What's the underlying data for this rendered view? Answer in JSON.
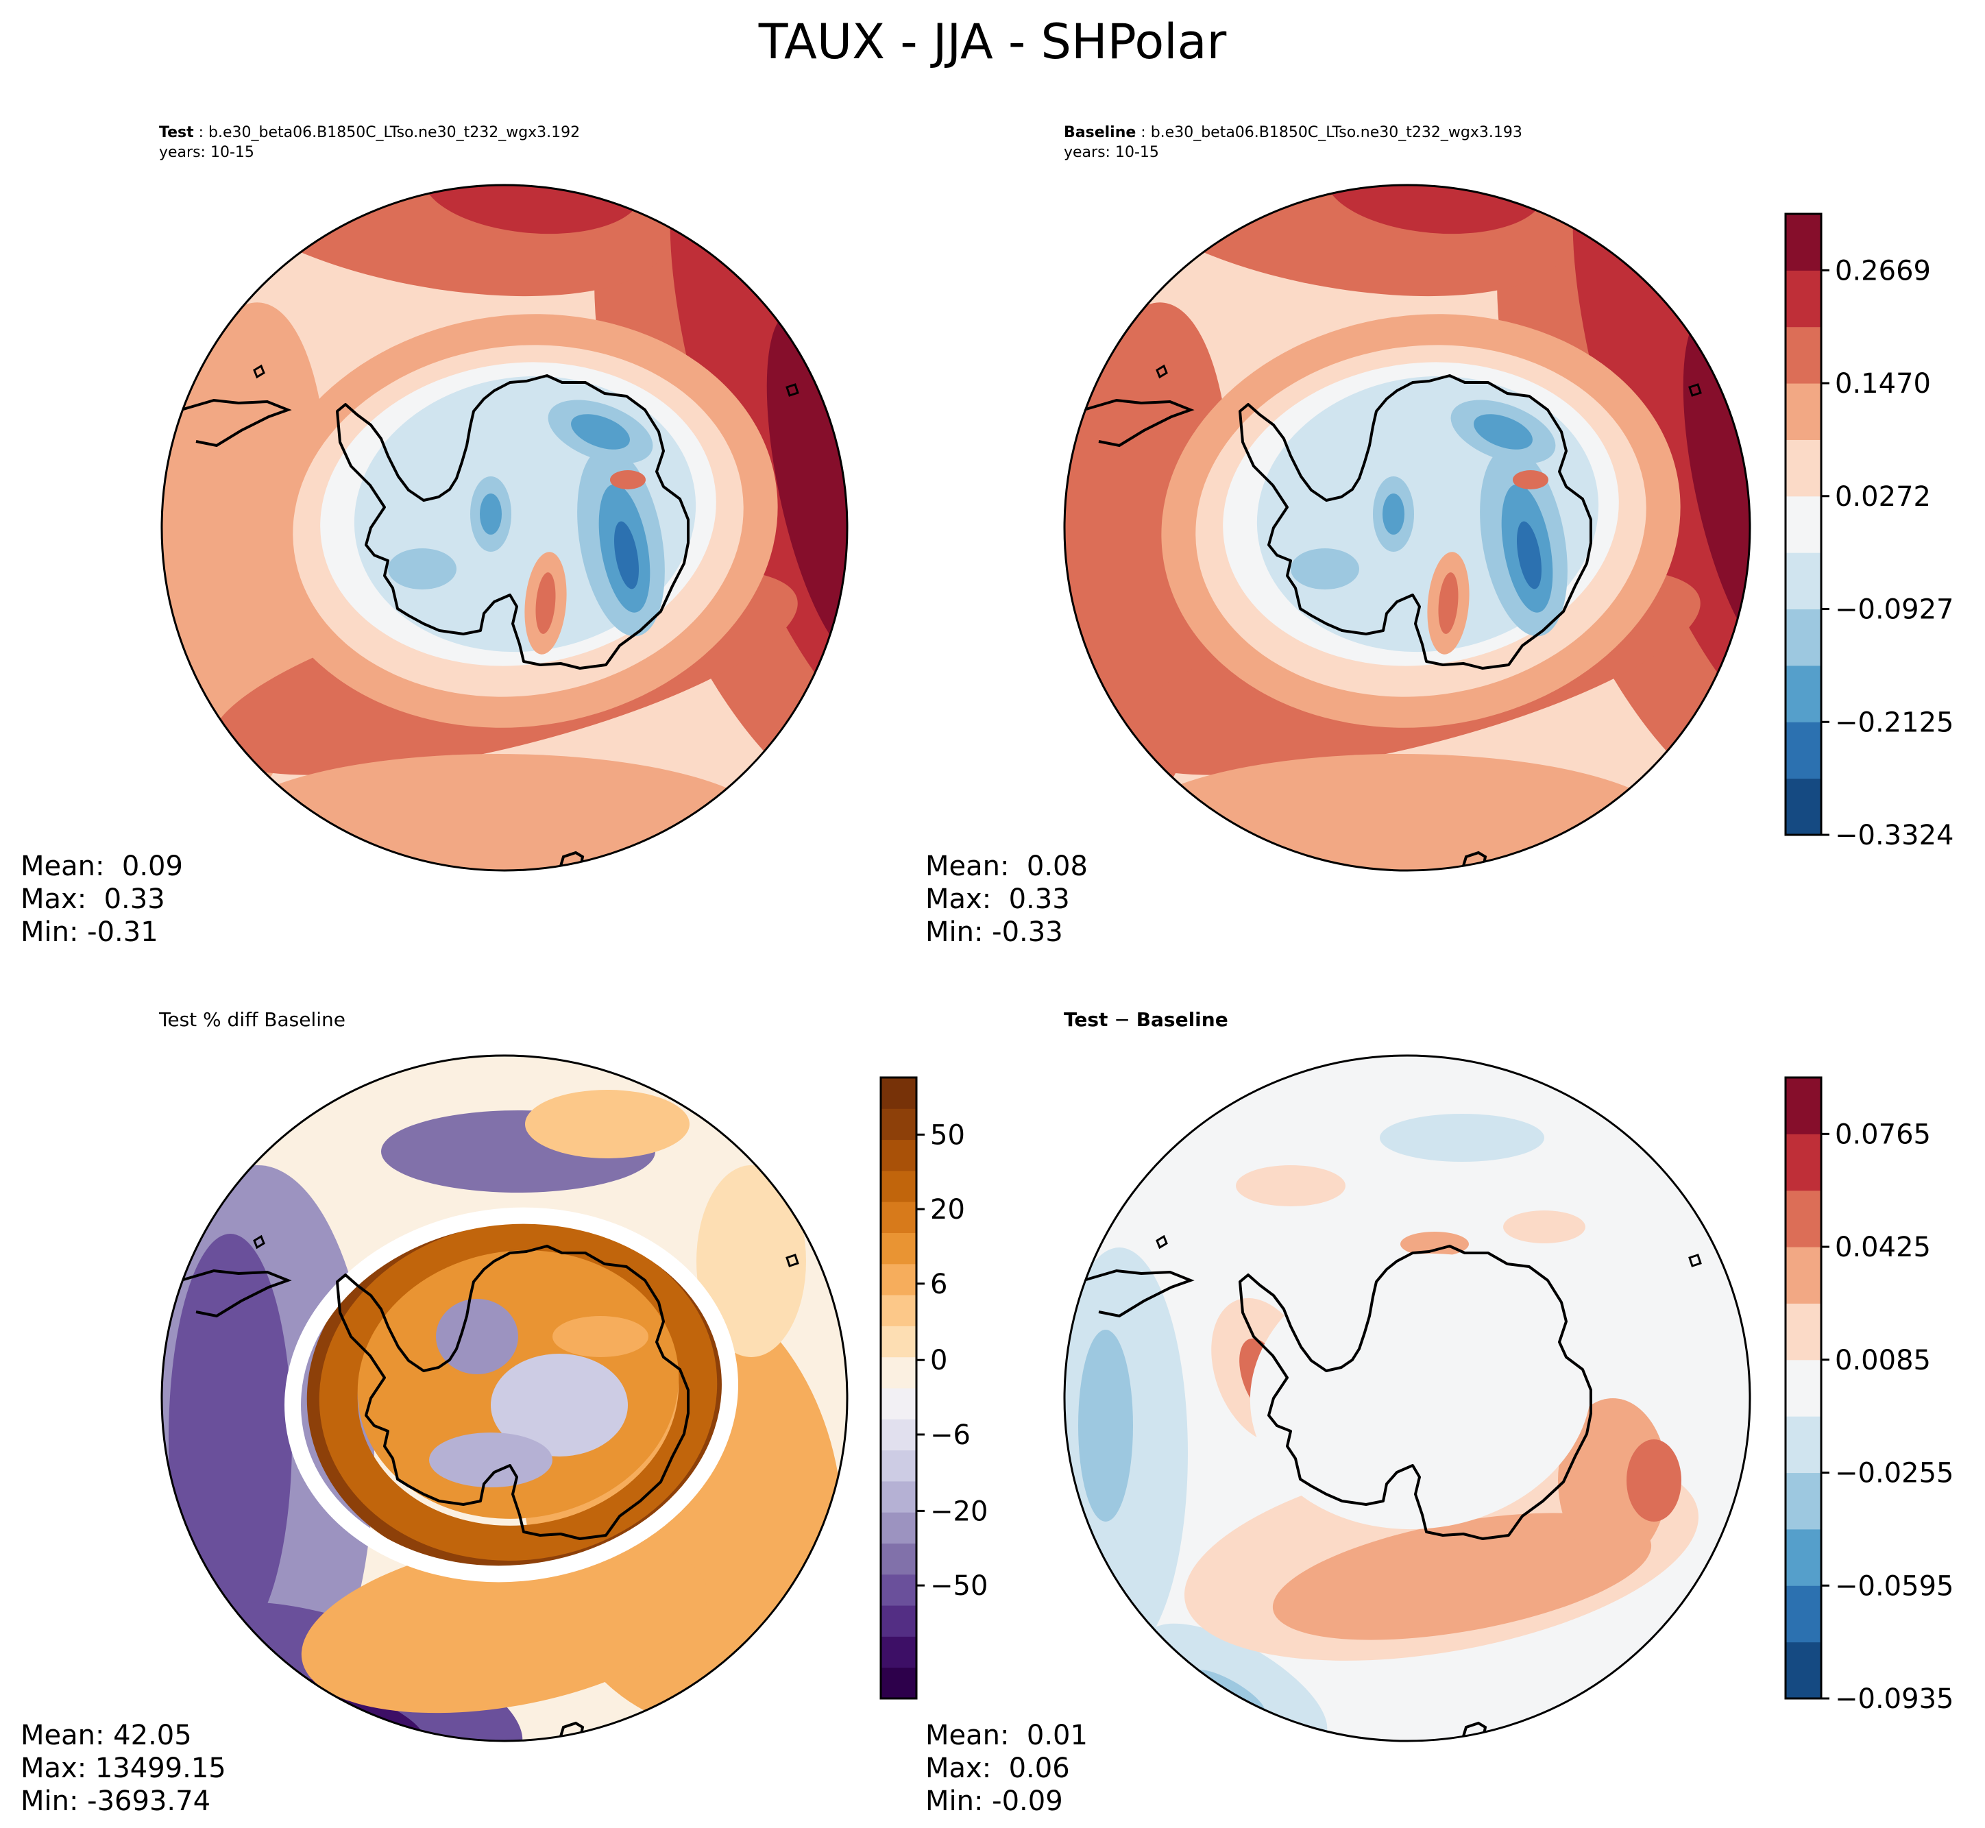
{
  "suptitle": "TAUX - JJA - SHPolar",
  "panels": {
    "test": {
      "label": "Test",
      "case": "b.e30_beta06.B1850C_LTso.ne30_t232_wgx3.192",
      "years": "years: 10-15",
      "mean": "Mean:  0.09",
      "max": "Max:  0.33",
      "min": "Min: -0.31"
    },
    "baseline": {
      "label": "Baseline",
      "case": "b.e30_beta06.B1850C_LTso.ne30_t232_wgx3.193",
      "years": "years: 10-15",
      "mean": "Mean:  0.08",
      "max": "Max:  0.33",
      "min": "Min: -0.33"
    },
    "pctdiff": {
      "title": "Test % diff Baseline",
      "mean": "Mean: 42.05",
      "max": "Max: 13499.15",
      "min": "Min: -3693.74"
    },
    "diff": {
      "title_bold": "Test",
      "title_mid": " − ",
      "title_bold2": "Baseline",
      "mean": "Mean:  0.01",
      "max": "Max:  0.06",
      "min": "Min: -0.09"
    }
  },
  "colors": {
    "rdbu": [
      "#154a82",
      "#2c71b0",
      "#559fcb",
      "#9dc8e0",
      "#d0e4ef",
      "#f4f5f6",
      "#fbdac7",
      "#f2a884",
      "#dc6e57",
      "#bf2f38",
      "#860e2b"
    ],
    "puor": [
      "#2d004b",
      "#3d0f66",
      "#532e84",
      "#6a509b",
      "#8171aa",
      "#9c93c0",
      "#b5b1d4",
      "#cdcce4",
      "#e1e0ee",
      "#f2f0f4",
      "#fbf0e1",
      "#fddeb3",
      "#fcc889",
      "#f6ad5c",
      "#e99433",
      "#d77a1b",
      "#c1650c",
      "#a95108",
      "#8d4009",
      "#773208"
    ],
    "line": "#000000",
    "mask": "#ffffff"
  },
  "chart_data": [
    {
      "type": "heatmap",
      "name": "Test",
      "variable": "TAUX",
      "projection": "South Polar Stereographic",
      "colorbar": {
        "ticks": [
          0.2669,
          0.147,
          0.0272,
          -0.0927,
          -0.2125,
          -0.3324
        ],
        "tick_labels": [
          "0.2669",
          "0.1470",
          "0.0272",
          "−0.0927",
          "−0.2125",
          "−0.3324"
        ],
        "range": [
          -0.3324,
          0.3264
        ],
        "levels": 11
      },
      "stats": {
        "mean": 0.09,
        "max": 0.33,
        "min": -0.31
      }
    },
    {
      "type": "heatmap",
      "name": "Baseline",
      "variable": "TAUX",
      "projection": "South Polar Stereographic",
      "colorbar": {
        "ticks": [
          0.2669,
          0.147,
          0.0272,
          -0.0927,
          -0.2125,
          -0.3324
        ],
        "tick_labels": [
          "0.2669",
          "0.1470",
          "0.0272",
          "−0.0927",
          "−0.2125",
          "−0.3324"
        ],
        "range": [
          -0.3324,
          0.3264
        ],
        "levels": 11
      },
      "stats": {
        "mean": 0.08,
        "max": 0.33,
        "min": -0.33
      }
    },
    {
      "type": "heatmap",
      "name": "Test % diff Baseline",
      "projection": "South Polar Stereographic",
      "colorbar": {
        "ticks": [
          50,
          20,
          6,
          0,
          -6,
          -20,
          -50
        ],
        "tick_labels": [
          "50",
          "20",
          "6",
          "0",
          "−6",
          "−20",
          "−50"
        ],
        "levels": 20
      },
      "stats": {
        "mean": 42.05,
        "max": 13499.15,
        "min": -3693.74
      }
    },
    {
      "type": "heatmap",
      "name": "Test − Baseline",
      "projection": "South Polar Stereographic",
      "colorbar": {
        "ticks": [
          0.0765,
          0.0425,
          0.0085,
          -0.0255,
          -0.0595,
          -0.0935
        ],
        "tick_labels": [
          "0.0765",
          "0.0425",
          "0.0085",
          "−0.0255",
          "−0.0595",
          "−0.0935"
        ],
        "range": [
          -0.0935,
          0.0935
        ],
        "levels": 11
      },
      "stats": {
        "mean": 0.01,
        "max": 0.06,
        "min": -0.09
      }
    }
  ]
}
